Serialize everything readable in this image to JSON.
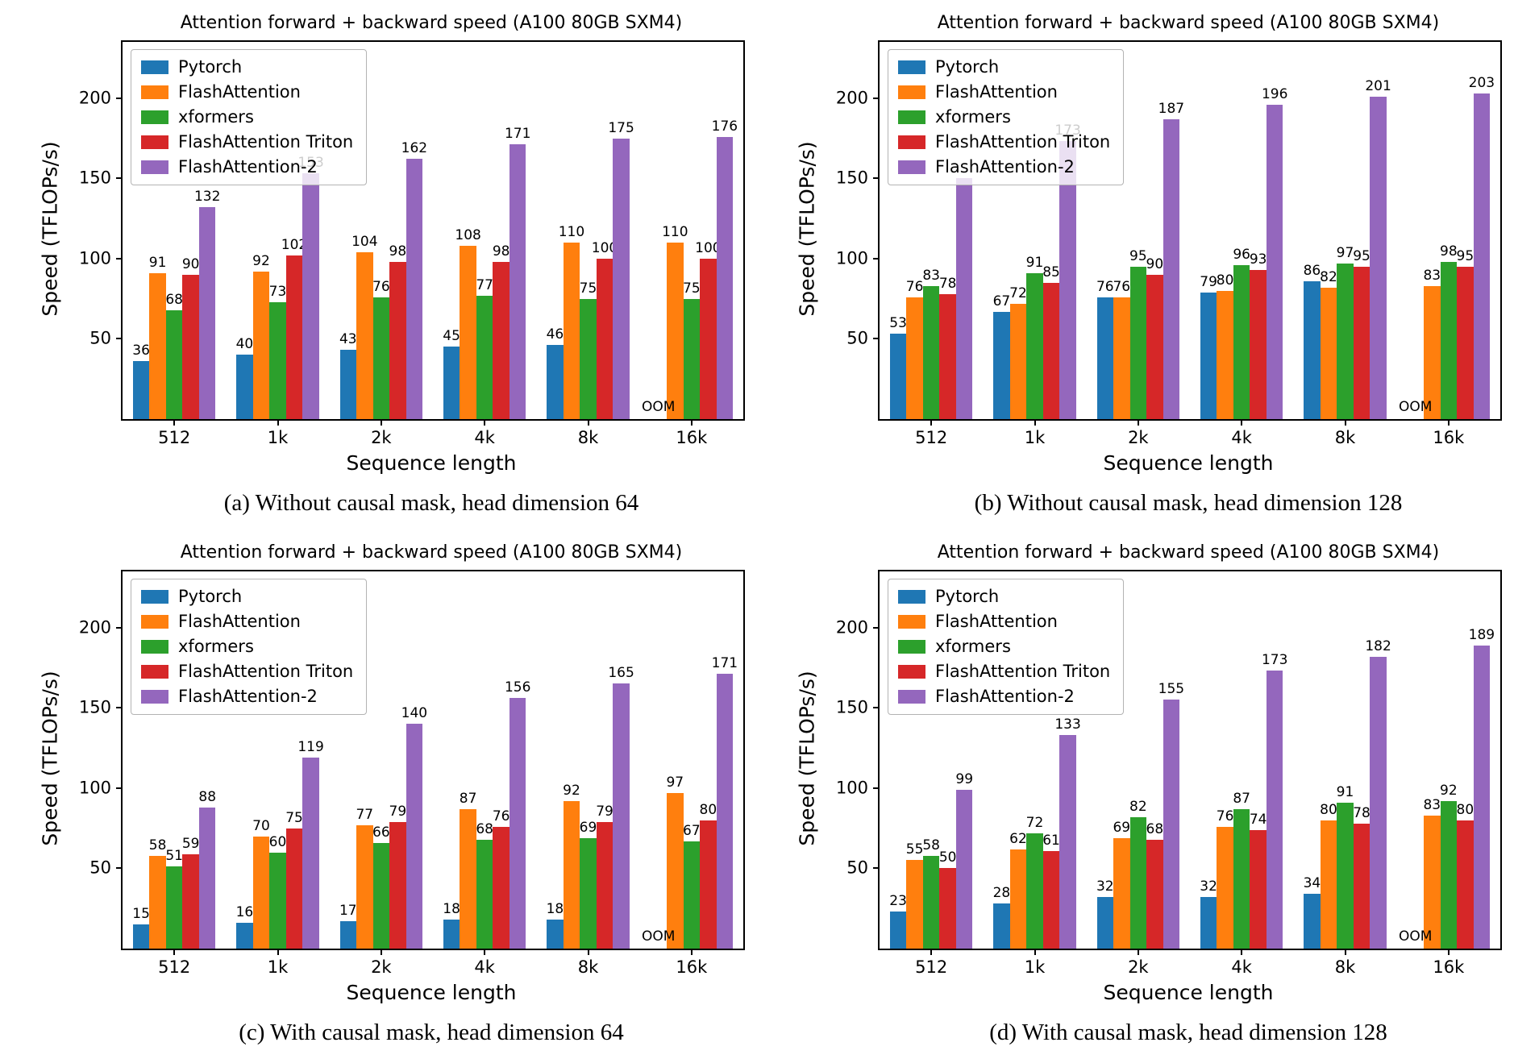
{
  "figure_meta": {
    "legend_position": "upper left",
    "series_names": [
      "Pytorch",
      "FlashAttention",
      "xformers",
      "FlashAttention Triton",
      "FlashAttention-2"
    ],
    "series_colors": [
      "#1f77b4",
      "#ff7f0e",
      "#2ca02c",
      "#d62728",
      "#9467bd"
    ]
  },
  "chart_data": [
    {
      "id": "a",
      "type": "bar",
      "title": "Attention forward + backward speed (A100 80GB SXM4)",
      "xlabel": "Sequence length",
      "ylabel": "Speed (TFLOPs/s)",
      "caption": "(a) Without causal mask, head dimension 64",
      "categories": [
        "512",
        "1k",
        "2k",
        "4k",
        "8k",
        "16k"
      ],
      "yticks": [
        50,
        100,
        150,
        200
      ],
      "ylim": [
        0,
        235
      ],
      "oom": {
        "series": "Pytorch",
        "category": "16k",
        "label": "OOM"
      },
      "series": [
        {
          "name": "Pytorch",
          "color": "#1f77b4",
          "values": [
            36,
            40,
            43,
            45,
            46,
            null
          ],
          "labels": [
            "36",
            "40",
            "43",
            "45",
            "46",
            ""
          ]
        },
        {
          "name": "FlashAttention",
          "color": "#ff7f0e",
          "values": [
            91,
            92,
            104,
            108,
            110,
            110
          ],
          "labels": [
            "91",
            "92",
            "104",
            "108",
            "110",
            "110"
          ]
        },
        {
          "name": "xformers",
          "color": "#2ca02c",
          "values": [
            68,
            73,
            76,
            77,
            75,
            75
          ],
          "labels": [
            "68",
            "73",
            "76",
            "77",
            "75",
            "75"
          ]
        },
        {
          "name": "FlashAttention Triton",
          "color": "#d62728",
          "values": [
            90,
            102,
            98,
            98,
            100,
            100
          ],
          "labels": [
            "90",
            "102",
            "98",
            "98",
            "100",
            "100"
          ]
        },
        {
          "name": "FlashAttention-2",
          "color": "#9467bd",
          "values": [
            132,
            153,
            162,
            171,
            175,
            176
          ],
          "labels": [
            "132",
            "153",
            "162",
            "171",
            "175",
            "176"
          ]
        }
      ]
    },
    {
      "id": "b",
      "type": "bar",
      "title": "Attention forward + backward speed (A100 80GB SXM4)",
      "xlabel": "Sequence length",
      "ylabel": "Speed (TFLOPs/s)",
      "caption": "(b) Without causal mask, head dimension 128",
      "categories": [
        "512",
        "1k",
        "2k",
        "4k",
        "8k",
        "16k"
      ],
      "yticks": [
        50,
        100,
        150,
        200
      ],
      "ylim": [
        0,
        235
      ],
      "oom": {
        "series": "Pytorch",
        "category": "16k",
        "label": "OOM"
      },
      "series": [
        {
          "name": "Pytorch",
          "color": "#1f77b4",
          "values": [
            53,
            67,
            76,
            79,
            86,
            null
          ],
          "labels": [
            "53",
            "67",
            "76",
            "79",
            "86",
            ""
          ]
        },
        {
          "name": "FlashAttention",
          "color": "#ff7f0e",
          "values": [
            76,
            72,
            76,
            80,
            82,
            83
          ],
          "labels": [
            "76",
            "72",
            "76",
            "80",
            "82",
            "83"
          ]
        },
        {
          "name": "xformers",
          "color": "#2ca02c",
          "values": [
            83,
            91,
            95,
            96,
            97,
            98
          ],
          "labels": [
            "83",
            "91",
            "95",
            "96",
            "97",
            "98"
          ]
        },
        {
          "name": "FlashAttention Triton",
          "color": "#d62728",
          "values": [
            78,
            85,
            90,
            93,
            95,
            95
          ],
          "labels": [
            "78",
            "85",
            "90",
            "93",
            "95",
            "95"
          ]
        },
        {
          "name": "FlashAttention-2",
          "color": "#9467bd",
          "values": [
            150,
            173,
            187,
            196,
            201,
            203
          ],
          "labels": [
            "",
            "173",
            "187",
            "196",
            "201",
            "203"
          ]
        }
      ]
    },
    {
      "id": "c",
      "type": "bar",
      "title": "Attention forward + backward speed (A100 80GB SXM4)",
      "xlabel": "Sequence length",
      "ylabel": "Speed (TFLOPs/s)",
      "caption": "(c) With causal mask, head dimension 64",
      "categories": [
        "512",
        "1k",
        "2k",
        "4k",
        "8k",
        "16k"
      ],
      "yticks": [
        50,
        100,
        150,
        200
      ],
      "ylim": [
        0,
        235
      ],
      "oom": {
        "series": "Pytorch",
        "category": "16k",
        "label": "OOM"
      },
      "series": [
        {
          "name": "Pytorch",
          "color": "#1f77b4",
          "values": [
            15,
            16,
            17,
            18,
            18,
            null
          ],
          "labels": [
            "15",
            "16",
            "17",
            "18",
            "18",
            ""
          ]
        },
        {
          "name": "FlashAttention",
          "color": "#ff7f0e",
          "values": [
            58,
            70,
            77,
            87,
            92,
            97
          ],
          "labels": [
            "58",
            "70",
            "77",
            "87",
            "92",
            "97"
          ]
        },
        {
          "name": "xformers",
          "color": "#2ca02c",
          "values": [
            51,
            60,
            66,
            68,
            69,
            67
          ],
          "labels": [
            "51",
            "60",
            "66",
            "68",
            "69",
            "67"
          ]
        },
        {
          "name": "FlashAttention Triton",
          "color": "#d62728",
          "values": [
            59,
            75,
            79,
            76,
            79,
            80
          ],
          "labels": [
            "59",
            "75",
            "79",
            "76",
            "79",
            "80"
          ]
        },
        {
          "name": "FlashAttention-2",
          "color": "#9467bd",
          "values": [
            88,
            119,
            140,
            156,
            165,
            171
          ],
          "labels": [
            "88",
            "119",
            "140",
            "156",
            "165",
            "171"
          ]
        }
      ]
    },
    {
      "id": "d",
      "type": "bar",
      "title": "Attention forward + backward speed (A100 80GB SXM4)",
      "xlabel": "Sequence length",
      "ylabel": "Speed (TFLOPs/s)",
      "caption": "(d) With causal mask, head dimension 128",
      "categories": [
        "512",
        "1k",
        "2k",
        "4k",
        "8k",
        "16k"
      ],
      "yticks": [
        50,
        100,
        150,
        200
      ],
      "ylim": [
        0,
        235
      ],
      "oom": {
        "series": "Pytorch",
        "category": "16k",
        "label": "OOM"
      },
      "series": [
        {
          "name": "Pytorch",
          "color": "#1f77b4",
          "values": [
            23,
            28,
            32,
            32,
            34,
            null
          ],
          "labels": [
            "23",
            "28",
            "32",
            "32",
            "34",
            ""
          ]
        },
        {
          "name": "FlashAttention",
          "color": "#ff7f0e",
          "values": [
            55,
            62,
            69,
            76,
            80,
            83
          ],
          "labels": [
            "55",
            "62",
            "69",
            "76",
            "80",
            "83"
          ]
        },
        {
          "name": "xformers",
          "color": "#2ca02c",
          "values": [
            58,
            72,
            82,
            87,
            91,
            92
          ],
          "labels": [
            "58",
            "72",
            "82",
            "87",
            "91",
            "92"
          ]
        },
        {
          "name": "FlashAttention Triton",
          "color": "#d62728",
          "values": [
            50,
            61,
            68,
            74,
            78,
            80
          ],
          "labels": [
            "50",
            "61",
            "68",
            "74",
            "78",
            "80"
          ]
        },
        {
          "name": "FlashAttention-2",
          "color": "#9467bd",
          "values": [
            99,
            133,
            155,
            173,
            182,
            189
          ],
          "labels": [
            "99",
            "133",
            "155",
            "173",
            "182",
            "189"
          ]
        }
      ]
    }
  ]
}
